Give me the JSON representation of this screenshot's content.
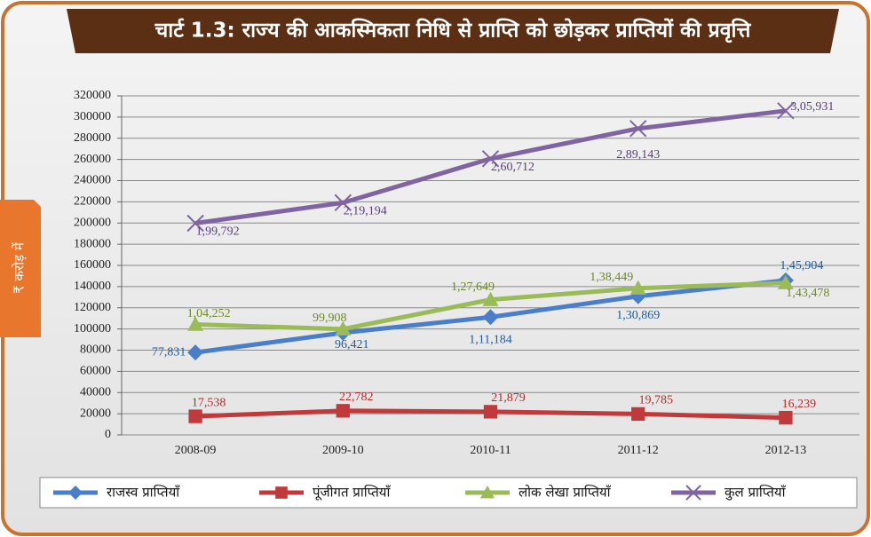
{
  "chart_data": {
    "type": "line",
    "title": "चार्ट 1.3: राज्य की आकस्मिकता निधि से प्राप्ति को छोड़कर प्राप्तियों की प्रवृत्ति",
    "y_label": "₹ करोड़ में",
    "categories": [
      "2008-09",
      "2009-10",
      "2010-11",
      "2011-12",
      "2012-13"
    ],
    "ylim": [
      0,
      320000
    ],
    "yticks": [
      0,
      20000,
      40000,
      60000,
      80000,
      100000,
      120000,
      140000,
      160000,
      180000,
      200000,
      220000,
      240000,
      260000,
      280000,
      300000,
      320000
    ],
    "grid": true,
    "legend": "bottom",
    "series": [
      {
        "name": "राजस्व प्राप्तियाँ",
        "color": "#4a7ec8",
        "label_color": "#1f5a96",
        "marker": "diamond",
        "values": [
          77831,
          96421,
          111184,
          130869,
          145904
        ],
        "value_labels": [
          "77,831",
          "96,421",
          "1,11,184",
          "1,30,869",
          "1,45,904"
        ]
      },
      {
        "name": "पूंजीगत प्राप्तियाँ",
        "color": "#c0393b",
        "label_color": "#b02a2c",
        "marker": "square",
        "values": [
          17538,
          22782,
          21879,
          19785,
          16239
        ],
        "value_labels": [
          "17,538",
          "22,782",
          "21,879",
          "19,785",
          "16,239"
        ]
      },
      {
        "name": "लोक लेखा प्राप्तियाँ",
        "color": "#9bbb59",
        "label_color": "#6b8a22",
        "marker": "triangle",
        "values": [
          104252,
          99908,
          127649,
          138449,
          143478
        ],
        "value_labels": [
          "1,04,252",
          "99,908",
          "1,27,649",
          "1,38,449",
          "1,43,478"
        ]
      },
      {
        "name": "कुल प्राप्तियाँ",
        "color": "#8064a2",
        "label_color": "#5b3d7a",
        "marker": "x",
        "values": [
          199792,
          219194,
          260712,
          289143,
          305931
        ],
        "value_labels": [
          "1,99,792",
          "2,19,194",
          "2,60,712",
          "2,89,143",
          "3,05,931"
        ]
      }
    ]
  }
}
